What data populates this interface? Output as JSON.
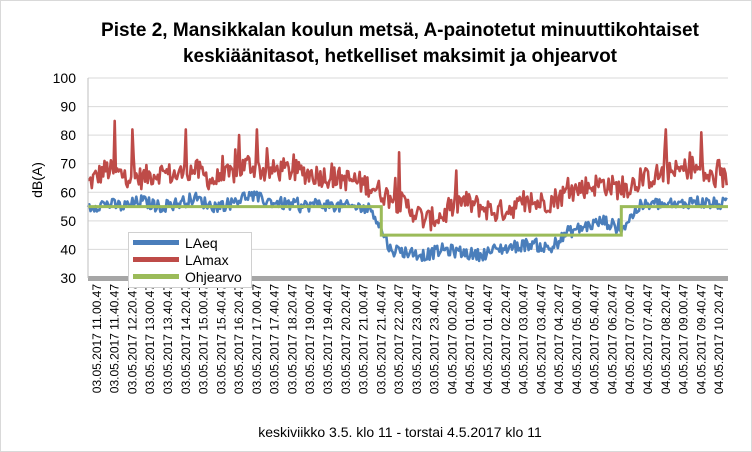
{
  "chart_data": {
    "type": "line",
    "title_line1": "Piste 2, Mansikkalan koulun metsä, A-painotetut minuuttikohtaiset",
    "title_line2": "keskiäänitasot, hetkelliset maksimit ja ohjearvot",
    "xlabel": "keskiviikko 3.5. klo 11 - torstai 4.5.2017 klo 11",
    "ylabel": "dB(A)",
    "ylim": [
      30,
      100
    ],
    "yticks": [
      30,
      40,
      50,
      60,
      70,
      80,
      90,
      100
    ],
    "grid": "horizontal",
    "legend_position": "left-bottom",
    "categories": [
      "03.05.2017 11.00.47",
      "03.05.2017 11.40.47",
      "03.05.2017 12.20.47",
      "03.05.2017 13.00.47",
      "03.05.2017 13.40.47",
      "03.05.2017 14.20.47",
      "03.05.2017 15.00.47",
      "03.05.2017 15.40.47",
      "03.05.2017 16.20.47",
      "03.05.2017 17.00.47",
      "03.05.2017 17.40.47",
      "03.05.2017 18.20.47",
      "03.05.2017 19.00.47",
      "03.05.2017 19.40.47",
      "03.05.2017 20.20.47",
      "03.05.2017 21.00.47",
      "03.05.2017 21.40.47",
      "03.05.2017 22.20.47",
      "03.05.2017 23.00.47",
      "03.05.2017 23.40.47",
      "04.05.2017 00.20.47",
      "04.05.2017 01.00.47",
      "04.05.2017 01.40.47",
      "04.05.2017 02.20.47",
      "04.05.2017 03.00.47",
      "04.05.2017 03.40.47",
      "04.05.2017 04.20.47",
      "04.05.2017 05.00.47",
      "04.05.2017 05.40.47",
      "04.05.2017 06.20.47",
      "04.05.2017 07.00.47",
      "04.05.2017 07.40.47",
      "04.05.2017 08.20.47",
      "04.05.2017 09.00.47",
      "04.05.2017 09.40.47",
      "04.05.2017 10.20.47"
    ],
    "series": [
      {
        "name": "LAeq",
        "color": "#4a7ebb",
        "values": [
          55,
          56,
          55,
          57,
          55,
          56,
          58,
          55,
          56,
          59,
          57,
          56,
          55,
          56,
          55,
          55,
          54,
          40,
          39,
          38,
          40,
          39,
          38,
          40,
          41,
          42,
          40,
          46,
          48,
          50,
          47,
          55,
          56,
          55,
          57,
          56
        ]
      },
      {
        "name": "LAmax",
        "color": "#be4b48",
        "values": [
          63,
          68,
          66,
          65,
          67,
          66,
          68,
          64,
          66,
          70,
          67,
          68,
          67,
          66,
          65,
          64,
          62,
          58,
          55,
          50,
          52,
          57,
          55,
          53,
          55,
          56,
          57,
          60,
          62,
          63,
          61,
          64,
          66,
          67,
          69,
          65
        ]
      },
      {
        "name": "Ohjearvo",
        "color": "#9bbb59",
        "steps": [
          {
            "from_category": "03.05.2017 11.00.47",
            "value": 55
          },
          {
            "from_category": "03.05.2017 22.00.47",
            "value": 45
          },
          {
            "from_category": "04.05.2017 07.00.47",
            "value": 55
          }
        ]
      }
    ],
    "annotations": [
      {
        "series": "LAmax",
        "category": "03.05.2017 11.40.47",
        "peak": 85
      },
      {
        "series": "LAmax",
        "category": "03.05.2017 12.20.47",
        "peak": 82
      },
      {
        "series": "LAmax",
        "category": "03.05.2017 14.20.47",
        "peak": 82
      },
      {
        "series": "LAmax",
        "category": "03.05.2017 16.20.47",
        "peak": 80
      },
      {
        "series": "LAmax",
        "category": "03.05.2017 17.00.47",
        "peak": 82
      },
      {
        "series": "LAmax",
        "category": "03.05.2017 22.20.47",
        "peak": 74
      },
      {
        "series": "LAmax",
        "category": "04.05.2017 08.20.47",
        "peak": 82
      },
      {
        "series": "LAmax",
        "category": "04.05.2017 09.40.47",
        "peak": 81
      }
    ]
  }
}
